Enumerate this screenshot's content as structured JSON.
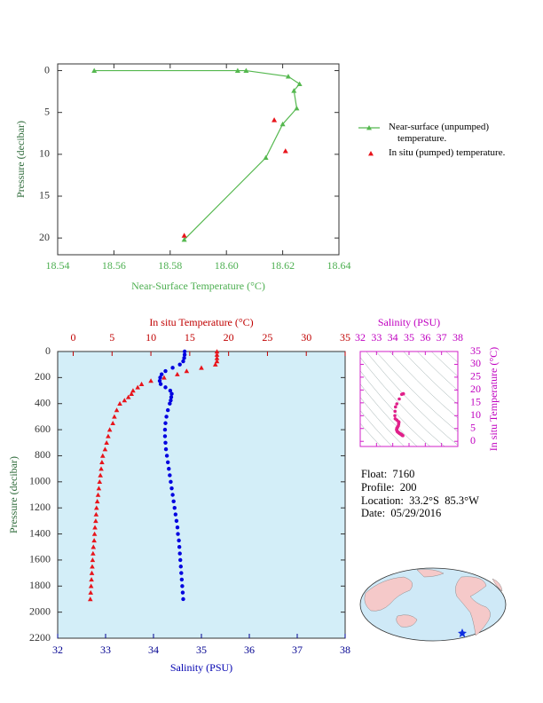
{
  "chart_data": [
    {
      "type": "line",
      "xlabel": "Near-Surface Temperature (°C)",
      "ylabel": "Pressure (decibar)",
      "xlim": [
        18.54,
        18.64
      ],
      "xticks": [
        18.54,
        18.56,
        18.58,
        {
          "value": 18.6,
          "label": "18.60"
        },
        18.62,
        18.64
      ],
      "ylim": [
        -0.8,
        22
      ],
      "yticks": [
        0,
        5,
        10,
        15,
        20
      ],
      "y_inverted": true,
      "legend": "right",
      "series": [
        {
          "name": "Near-surface (unpumped) temperature.",
          "color": "#55b84f",
          "marker": "triangle",
          "line": true,
          "y": [
            0,
            0,
            0,
            0.7,
            1.6,
            2.4,
            4.5,
            6.4,
            10.4,
            20.2
          ],
          "values": [
            18.553,
            18.604,
            18.607,
            18.622,
            18.626,
            18.624,
            18.625,
            18.62,
            18.614,
            18.585
          ]
        },
        {
          "name": "In situ (pumped) temperature.",
          "color": "#e8141b",
          "marker": "triangle",
          "line": false,
          "y": [
            5.9,
            9.6,
            19.7
          ],
          "values": [
            18.617,
            18.621,
            18.585
          ]
        }
      ]
    },
    {
      "type": "scatter",
      "xlabel": "Salinity (PSU)",
      "x2label": "In situ Temperature (°C)",
      "ylabel": "Pressure (decibar)",
      "xlim": [
        32,
        38
      ],
      "xticks": [
        32,
        33,
        34,
        35,
        36,
        37,
        38
      ],
      "x2lim": [
        -2,
        35
      ],
      "x2ticks": [
        0,
        5,
        10,
        15,
        20,
        25,
        30,
        35
      ],
      "ylim": [
        0,
        2200
      ],
      "yticks": [
        0,
        200,
        400,
        600,
        800,
        1000,
        1200,
        1400,
        1600,
        1800,
        2000,
        2200
      ],
      "y_inverted": true,
      "background": "#d3eef8",
      "y": [
        0,
        25,
        50,
        75,
        100,
        125,
        150,
        175,
        200,
        225,
        250,
        275,
        300,
        325,
        350,
        375,
        400,
        450,
        500,
        550,
        600,
        650,
        700,
        750,
        800,
        850,
        900,
        950,
        1000,
        1050,
        1100,
        1150,
        1200,
        1250,
        1300,
        1350,
        1400,
        1450,
        1500,
        1550,
        1600,
        1650,
        1700,
        1750,
        1800,
        1850,
        1900
      ],
      "series": [
        {
          "color": "#0000e0",
          "marker": "circle",
          "values": [
            34.65,
            34.65,
            34.64,
            34.62,
            34.55,
            34.4,
            34.25,
            34.17,
            34.14,
            34.13,
            34.15,
            34.25,
            34.35,
            34.38,
            34.37,
            34.36,
            34.34,
            34.3,
            34.27,
            34.25,
            34.24,
            34.24,
            34.25,
            34.26,
            34.28,
            34.3,
            34.32,
            34.34,
            34.36,
            34.38,
            34.4,
            34.42,
            34.44,
            34.46,
            34.48,
            34.5,
            34.51,
            34.53,
            34.54,
            34.55,
            34.56,
            34.57,
            34.58,
            34.59,
            34.6,
            34.61,
            34.62
          ]
        },
        {
          "color": "#e8141b",
          "marker": "triangle",
          "axis": "x2",
          "values": [
            18.5,
            18.5,
            18.5,
            18.5,
            18.3,
            16.5,
            14.6,
            13.4,
            11.7,
            10.0,
            8.8,
            8.3,
            7.7,
            7.5,
            7.1,
            6.6,
            6.0,
            5.6,
            5.3,
            5.1,
            4.7,
            4.5,
            4.3,
            4.1,
            3.8,
            3.7,
            3.6,
            3.5,
            3.4,
            3.3,
            3.2,
            3.1,
            3.0,
            2.95,
            2.9,
            2.8,
            2.75,
            2.7,
            2.6,
            2.55,
            2.5,
            2.45,
            2.4,
            2.35,
            2.3,
            2.25,
            2.2
          ]
        }
      ]
    },
    {
      "type": "scatter",
      "xlabel": "Salinity (PSU)",
      "ylabel": "In situ Temperature (°C)",
      "xlim": [
        32,
        38
      ],
      "xticks": [
        32,
        33,
        34,
        35,
        36,
        37,
        38
      ],
      "ylim": [
        -2,
        35
      ],
      "yticks": [
        0,
        5,
        10,
        15,
        20,
        25,
        30,
        35
      ],
      "color": "#e0208a"
    }
  ],
  "info": [
    "Float:  7160",
    "Profile:  200",
    "Location:  33.2°S  85.3°W",
    "Date:  05/29/2016"
  ]
}
